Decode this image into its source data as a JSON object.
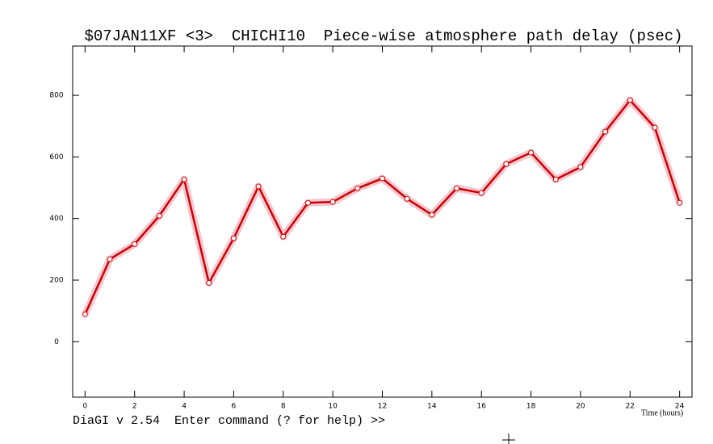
{
  "chart_data": {
    "type": "line",
    "title": "$07JAN11XF <3>  CHICHI10  Piece-wise atmosphere path delay (psec)",
    "xlabel": "Time (hours)",
    "x": [
      0,
      1,
      2,
      3,
      4,
      5,
      6,
      7,
      8,
      9,
      10,
      11,
      12,
      13,
      14,
      15,
      16,
      17,
      18,
      19,
      20,
      21,
      22,
      23,
      24
    ],
    "values": [
      89,
      268,
      317,
      409,
      527,
      191,
      336,
      504,
      341,
      451,
      454,
      498,
      530,
      464,
      412,
      498,
      483,
      577,
      614,
      527,
      567,
      682,
      784,
      695,
      451
    ],
    "color": "#cc0000",
    "xlim": [
      -0.5,
      24.5
    ],
    "xticks": [
      0,
      2,
      4,
      6,
      8,
      10,
      12,
      14,
      16,
      18,
      20,
      22,
      24
    ],
    "ylim": [
      -180,
      960
    ],
    "yticks": [
      0,
      200,
      400,
      600,
      800
    ]
  },
  "status_line": "DiaGI v 2.54  Enter command (? for help) >>"
}
